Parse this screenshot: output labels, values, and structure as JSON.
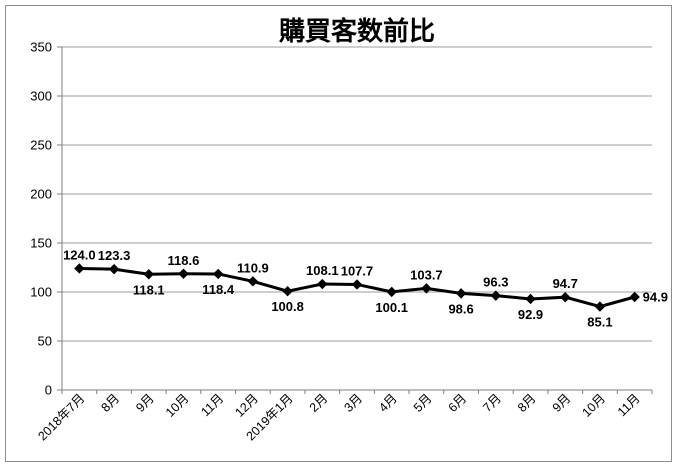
{
  "chart_data": {
    "type": "line",
    "title": "購買客数前比",
    "categories": [
      "2018年7月",
      "8月",
      "9月",
      "10月",
      "11月",
      "12月",
      "2019年1月",
      "2月",
      "3月",
      "4月",
      "5月",
      "6月",
      "7月",
      "8月",
      "9月",
      "10月",
      "11月"
    ],
    "values": [
      124.0,
      123.3,
      118.1,
      118.6,
      118.4,
      110.9,
      100.8,
      108.1,
      107.7,
      100.1,
      103.7,
      98.6,
      96.3,
      92.9,
      94.7,
      85.1,
      94.9
    ],
    "data_labels": [
      "124.0",
      "123.3",
      "118.1",
      "118.6",
      "118.4",
      "110.9",
      "100.8",
      "108.1",
      "107.7",
      "100.1",
      "103.7",
      "98.6",
      "96.3",
      "92.9",
      "94.7",
      "85.1",
      "94.9"
    ],
    "label_positions": [
      "above",
      "above",
      "below",
      "above",
      "below",
      "above",
      "below",
      "above",
      "above",
      "below",
      "above",
      "below",
      "above",
      "below",
      "above",
      "below",
      "right"
    ],
    "xlabel": "",
    "ylabel": "",
    "ylim": [
      0,
      350
    ],
    "yticks": [
      0,
      50,
      100,
      150,
      200,
      250,
      300,
      350
    ],
    "grid": true,
    "legend": "none",
    "marker": "diamond",
    "colors": {
      "series": "#000000",
      "gridline": "#9e9e9e",
      "axis": "#7f7f7f",
      "border": "#8c8c8c",
      "background": "#ffffff",
      "text": "#000000"
    }
  }
}
